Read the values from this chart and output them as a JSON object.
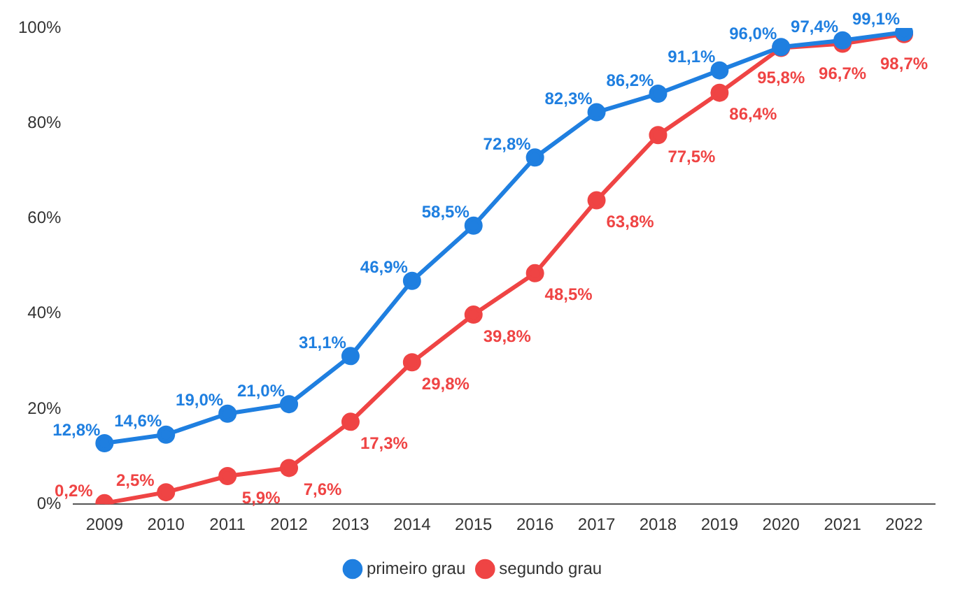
{
  "chart_data": {
    "type": "line",
    "categories": [
      "2009",
      "2010",
      "2011",
      "2012",
      "2013",
      "2014",
      "2015",
      "2016",
      "2017",
      "2018",
      "2019",
      "2020",
      "2021",
      "2022"
    ],
    "series": [
      {
        "name": "primeiro grau",
        "color": "#1f7fe0",
        "values": [
          12.8,
          14.6,
          19.0,
          21.0,
          31.1,
          46.9,
          58.5,
          72.8,
          82.3,
          86.2,
          91.1,
          96.0,
          97.4,
          99.1
        ],
        "value_labels": [
          "12,8%",
          "14,6%",
          "19,0%",
          "21,0%",
          "31,1%",
          "46,9%",
          "58,5%",
          "72,8%",
          "82,3%",
          "86,2%",
          "91,1%",
          "96,0%",
          "97,4%",
          "99,1%"
        ]
      },
      {
        "name": "segundo grau",
        "color": "#ef4444",
        "values": [
          0.2,
          2.5,
          5.9,
          7.6,
          17.3,
          29.8,
          39.8,
          48.5,
          63.8,
          77.5,
          86.4,
          95.8,
          96.7,
          98.7
        ],
        "value_labels": [
          "0,2%",
          "2,5%",
          "5,9%",
          "7,6%",
          "17,3%",
          "29,8%",
          "39,8%",
          "48,5%",
          "63,8%",
          "77,5%",
          "86,4%",
          "95,8%",
          "96,7%",
          "98,7%"
        ]
      }
    ],
    "ylim": [
      0,
      100
    ],
    "yticks": [
      {
        "value": 0,
        "label": "0%"
      },
      {
        "value": 20,
        "label": "20%"
      },
      {
        "value": 40,
        "label": "40%"
      },
      {
        "value": 60,
        "label": "60%"
      },
      {
        "value": 80,
        "label": "80%"
      },
      {
        "value": 100,
        "label": "100%"
      }
    ],
    "grid": false,
    "legend": "bottom",
    "marker": "circle",
    "line_style": "solid"
  }
}
